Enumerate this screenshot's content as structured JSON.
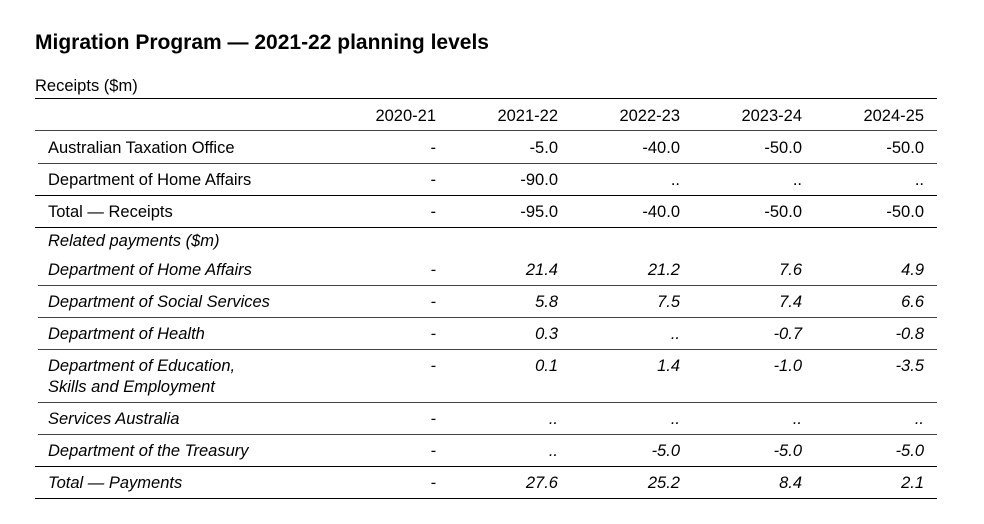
{
  "title": "Migration Program — 2021-22 planning levels",
  "subtitle": "Receipts ($m)",
  "columns": [
    "2020-21",
    "2021-22",
    "2022-23",
    "2023-24",
    "2024-25"
  ],
  "receipts": [
    {
      "label": "Australian Taxation Office",
      "values": [
        "-",
        "-5.0",
        "-40.0",
        "-50.0",
        "-50.0"
      ]
    },
    {
      "label": "Department of Home Affairs",
      "values": [
        "-",
        "-90.0",
        "..",
        "..",
        ".."
      ]
    },
    {
      "label": "Total — Receipts",
      "values": [
        "-",
        "-95.0",
        "-40.0",
        "-50.0",
        "-50.0"
      ]
    }
  ],
  "payments_heading": "Related payments ($m)",
  "payments": [
    {
      "label": "Department of Home Affairs",
      "values": [
        "-",
        "21.4",
        "21.2",
        "7.6",
        "4.9"
      ]
    },
    {
      "label": "Department of Social Services",
      "values": [
        "-",
        "5.8",
        "7.5",
        "7.4",
        "6.6"
      ]
    },
    {
      "label": "Department of Health",
      "values": [
        "-",
        "0.3",
        "..",
        "-0.7",
        "-0.8"
      ]
    },
    {
      "label": "Department of Education,",
      "label2": "Skills and Employment",
      "values": [
        "-",
        "0.1",
        "1.4",
        "-1.0",
        "-3.5"
      ]
    },
    {
      "label": "Services Australia",
      "values": [
        "-",
        "..",
        "..",
        "..",
        ".."
      ]
    },
    {
      "label": "Department of the Treasury",
      "values": [
        "-",
        "..",
        "-5.0",
        "-5.0",
        "-5.0"
      ]
    },
    {
      "label": "Total — Payments",
      "values": [
        "-",
        "27.6",
        "25.2",
        "8.4",
        "2.1"
      ]
    }
  ]
}
